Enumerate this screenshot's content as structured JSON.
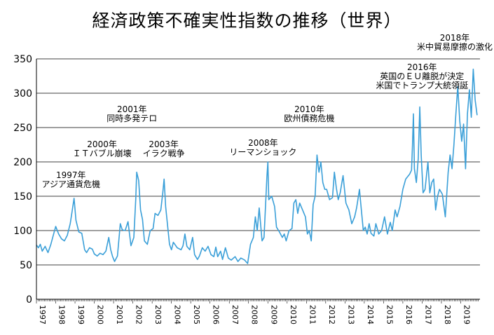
{
  "chart_data": {
    "type": "line",
    "title": "経済政策不確実性指数の推移（世界）",
    "xlabel": "",
    "ylabel": "",
    "xlim": [
      1997,
      2020
    ],
    "ylim": [
      0,
      350
    ],
    "y_ticks": [
      0,
      50,
      100,
      150,
      200,
      250,
      300,
      350
    ],
    "x_ticks": [
      "1997",
      "1998",
      "1999",
      "2000",
      "2001",
      "2002",
      "2003",
      "2004",
      "2005",
      "2006",
      "2007",
      "2008",
      "2009",
      "2010",
      "2011",
      "2012",
      "2013",
      "2014",
      "2015",
      "2016",
      "2017",
      "2018",
      "2019"
    ],
    "grid": "horizontal",
    "line_color": "#3a9fd8",
    "series": [
      {
        "values": [
          [
            1997.0,
            79
          ],
          [
            1997.1,
            75
          ],
          [
            1997.2,
            80
          ],
          [
            1997.3,
            70
          ],
          [
            1997.45,
            77
          ],
          [
            1997.6,
            68
          ],
          [
            1997.75,
            80
          ],
          [
            1997.9,
            96
          ],
          [
            1998.0,
            106
          ],
          [
            1998.15,
            95
          ],
          [
            1998.3,
            88
          ],
          [
            1998.45,
            85
          ],
          [
            1998.6,
            93
          ],
          [
            1998.75,
            110
          ],
          [
            1998.85,
            128
          ],
          [
            1998.95,
            147
          ],
          [
            1999.05,
            115
          ],
          [
            1999.2,
            98
          ],
          [
            1999.35,
            96
          ],
          [
            1999.5,
            72
          ],
          [
            1999.6,
            68
          ],
          [
            1999.75,
            75
          ],
          [
            1999.9,
            73
          ],
          [
            2000.0,
            66
          ],
          [
            2000.15,
            63
          ],
          [
            2000.3,
            67
          ],
          [
            2000.45,
            65
          ],
          [
            2000.6,
            70
          ],
          [
            2000.75,
            90
          ],
          [
            2000.85,
            72
          ],
          [
            2000.95,
            62
          ],
          [
            2001.05,
            55
          ],
          [
            2001.2,
            63
          ],
          [
            2001.35,
            110
          ],
          [
            2001.45,
            101
          ],
          [
            2001.6,
            100
          ],
          [
            2001.75,
            113
          ],
          [
            2001.9,
            78
          ],
          [
            2002.05,
            90
          ],
          [
            2002.15,
            145
          ],
          [
            2002.2,
            185
          ],
          [
            2002.3,
            173
          ],
          [
            2002.4,
            130
          ],
          [
            2002.5,
            116
          ],
          [
            2002.6,
            85
          ],
          [
            2002.75,
            80
          ],
          [
            2002.9,
            100
          ],
          [
            2003.05,
            103
          ],
          [
            2003.15,
            125
          ],
          [
            2003.3,
            122
          ],
          [
            2003.45,
            130
          ],
          [
            2003.55,
            155
          ],
          [
            2003.62,
            175
          ],
          [
            2003.7,
            135
          ],
          [
            2003.8,
            108
          ],
          [
            2003.9,
            80
          ],
          [
            2004.0,
            72
          ],
          [
            2004.1,
            83
          ],
          [
            2004.3,
            75
          ],
          [
            2004.5,
            72
          ],
          [
            2004.6,
            78
          ],
          [
            2004.7,
            95
          ],
          [
            2004.8,
            77
          ],
          [
            2004.95,
            72
          ],
          [
            2005.1,
            90
          ],
          [
            2005.2,
            65
          ],
          [
            2005.35,
            58
          ],
          [
            2005.45,
            63
          ],
          [
            2005.6,
            75
          ],
          [
            2005.75,
            70
          ],
          [
            2005.9,
            77
          ],
          [
            2006.05,
            65
          ],
          [
            2006.2,
            62
          ],
          [
            2006.3,
            76
          ],
          [
            2006.4,
            62
          ],
          [
            2006.55,
            70
          ],
          [
            2006.65,
            58
          ],
          [
            2006.8,
            75
          ],
          [
            2006.95,
            60
          ],
          [
            2007.1,
            57
          ],
          [
            2007.3,
            62
          ],
          [
            2007.45,
            55
          ],
          [
            2007.6,
            60
          ],
          [
            2007.8,
            57
          ],
          [
            2007.95,
            52
          ],
          [
            2008.1,
            80
          ],
          [
            2008.25,
            90
          ],
          [
            2008.35,
            120
          ],
          [
            2008.45,
            100
          ],
          [
            2008.55,
            133
          ],
          [
            2008.7,
            85
          ],
          [
            2008.8,
            90
          ],
          [
            2008.95,
            178
          ],
          [
            2009.0,
            200
          ],
          [
            2009.05,
            145
          ],
          [
            2009.2,
            150
          ],
          [
            2009.35,
            135
          ],
          [
            2009.45,
            105
          ],
          [
            2009.6,
            98
          ],
          [
            2009.75,
            90
          ],
          [
            2009.85,
            95
          ],
          [
            2009.95,
            85
          ],
          [
            2010.1,
            100
          ],
          [
            2010.25,
            103
          ],
          [
            2010.35,
            140
          ],
          [
            2010.45,
            145
          ],
          [
            2010.55,
            125
          ],
          [
            2010.65,
            140
          ],
          [
            2010.8,
            130
          ],
          [
            2010.95,
            120
          ],
          [
            2011.05,
            95
          ],
          [
            2011.15,
            100
          ],
          [
            2011.25,
            85
          ],
          [
            2011.35,
            138
          ],
          [
            2011.45,
            150
          ],
          [
            2011.55,
            210
          ],
          [
            2011.65,
            185
          ],
          [
            2011.75,
            200
          ],
          [
            2011.85,
            170
          ],
          [
            2011.95,
            160
          ],
          [
            2012.05,
            160
          ],
          [
            2012.2,
            145
          ],
          [
            2012.35,
            148
          ],
          [
            2012.45,
            185
          ],
          [
            2012.55,
            162
          ],
          [
            2012.65,
            145
          ],
          [
            2012.75,
            155
          ],
          [
            2012.9,
            180
          ],
          [
            2013.05,
            140
          ],
          [
            2013.2,
            130
          ],
          [
            2013.35,
            110
          ],
          [
            2013.5,
            120
          ],
          [
            2013.6,
            133
          ],
          [
            2013.75,
            160
          ],
          [
            2013.85,
            130
          ],
          [
            2013.95,
            100
          ],
          [
            2014.05,
            105
          ],
          [
            2014.15,
            95
          ],
          [
            2014.25,
            110
          ],
          [
            2014.35,
            96
          ],
          [
            2014.5,
            92
          ],
          [
            2014.6,
            110
          ],
          [
            2014.75,
            95
          ],
          [
            2014.9,
            100
          ],
          [
            2015.05,
            120
          ],
          [
            2015.2,
            95
          ],
          [
            2015.35,
            112
          ],
          [
            2015.45,
            100
          ],
          [
            2015.6,
            130
          ],
          [
            2015.7,
            120
          ],
          [
            2015.85,
            135
          ],
          [
            2016.0,
            160
          ],
          [
            2016.15,
            175
          ],
          [
            2016.35,
            182
          ],
          [
            2016.45,
            188
          ],
          [
            2016.5,
            225
          ],
          [
            2016.55,
            270
          ],
          [
            2016.6,
            190
          ],
          [
            2016.7,
            170
          ],
          [
            2016.8,
            205
          ],
          [
            2016.88,
            280
          ],
          [
            2016.95,
            210
          ],
          [
            2017.05,
            155
          ],
          [
            2017.15,
            160
          ],
          [
            2017.3,
            200
          ],
          [
            2017.4,
            155
          ],
          [
            2017.5,
            170
          ],
          [
            2017.6,
            175
          ],
          [
            2017.7,
            130
          ],
          [
            2017.8,
            150
          ],
          [
            2017.9,
            160
          ],
          [
            2018.05,
            153
          ],
          [
            2018.2,
            120
          ],
          [
            2018.35,
            185
          ],
          [
            2018.45,
            210
          ],
          [
            2018.55,
            190
          ],
          [
            2018.65,
            225
          ],
          [
            2018.75,
            270
          ],
          [
            2018.85,
            310
          ],
          [
            2018.95,
            260
          ],
          [
            2019.05,
            230
          ],
          [
            2019.15,
            255
          ],
          [
            2019.25,
            190
          ],
          [
            2019.35,
            270
          ],
          [
            2019.45,
            305
          ],
          [
            2019.55,
            265
          ],
          [
            2019.65,
            335
          ],
          [
            2019.75,
            290
          ],
          [
            2019.85,
            268
          ]
        ]
      }
    ],
    "annotations": [
      {
        "year": "1997年",
        "event": "アジア通貨危機",
        "x": 1998.8
      },
      {
        "year": "2000年",
        "event": "ＩＴバブル崩壊",
        "x": 2000.4
      },
      {
        "year": "2001年",
        "event": "同時多発テロ",
        "x": 2001.95
      },
      {
        "year": "2003年",
        "event": "イラク戦争",
        "x": 2003.6
      },
      {
        "year": "2008年",
        "event": "リーマンショック",
        "x": 2008.75
      },
      {
        "year": "2010年",
        "event": "欧州債務危機",
        "x": 2011.15
      },
      {
        "year": "2016年",
        "event": "英国のＥＵ離脱が決定",
        "event2": "米国でトランプ大統領誕",
        "x": 2017.0
      },
      {
        "year": "2018年",
        "event": "米中貿易摩擦の激化",
        "x": 2019.0
      }
    ]
  }
}
